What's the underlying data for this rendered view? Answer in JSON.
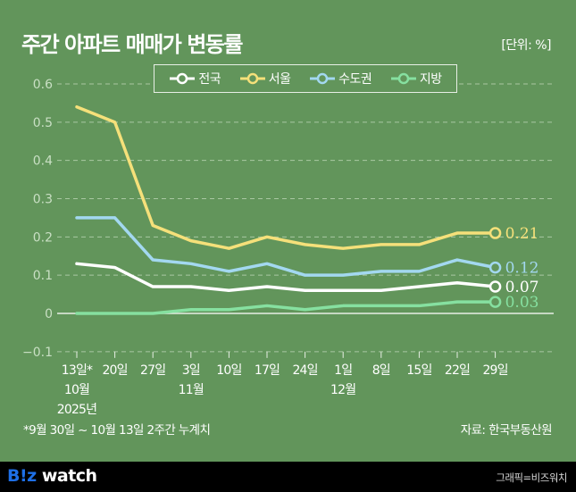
{
  "header": {
    "title": "주간 아파트 매매가 변동률",
    "unit": "[단위: %]"
  },
  "legend": [
    {
      "label": "전국",
      "color": "#ffffff"
    },
    {
      "label": "서울",
      "color": "#f5e07a"
    },
    {
      "label": "수도권",
      "color": "#a3d8f0"
    },
    {
      "label": "지방",
      "color": "#86e0a0"
    }
  ],
  "footnote": "*9월 30일 ~ 10월 13일 2주간 누계치",
  "source": "자료: 한국부동산원",
  "footer": {
    "logo_b": "B!z",
    "logo_rest": " watch",
    "credit": "그래픽=비즈워치"
  },
  "chart_data": {
    "type": "line",
    "title": "주간 아파트 매매가 변동률",
    "ylabel": "%",
    "xlabel": "",
    "ylim": [
      -0.1,
      0.6
    ],
    "yticks": [
      "0.6",
      "0.5",
      "0.4",
      "0.3",
      "0.2",
      "0.1",
      "0",
      "−0.1"
    ],
    "ytick_values": [
      0.6,
      0.5,
      0.4,
      0.3,
      0.2,
      0.1,
      0,
      -0.1
    ],
    "grid": true,
    "legend_position": "top",
    "categories": [
      "13일*",
      "20일",
      "27일",
      "3일",
      "10일",
      "17일",
      "24일",
      "1일",
      "8일",
      "15일",
      "22일",
      "29일"
    ],
    "month_labels": [
      {
        "index": 0,
        "label": "10월"
      },
      {
        "index": 3,
        "label": "11월"
      },
      {
        "index": 7,
        "label": "12월"
      }
    ],
    "year_label": {
      "index": 0,
      "label": "2025년"
    },
    "series": [
      {
        "name": "전국",
        "color": "#ffffff",
        "values": [
          0.13,
          0.12,
          0.07,
          0.07,
          0.06,
          0.07,
          0.06,
          0.06,
          0.06,
          0.07,
          0.08,
          0.07
        ],
        "end_label": "0.07"
      },
      {
        "name": "서울",
        "color": "#f5e07a",
        "values": [
          0.54,
          0.5,
          0.23,
          0.19,
          0.17,
          0.2,
          0.18,
          0.17,
          0.18,
          0.18,
          0.21,
          0.21
        ],
        "end_label": "0.21"
      },
      {
        "name": "수도권",
        "color": "#a3d8f0",
        "values": [
          0.25,
          0.25,
          0.14,
          0.13,
          0.11,
          0.13,
          0.1,
          0.1,
          0.11,
          0.11,
          0.14,
          0.12
        ],
        "end_label": "0.12"
      },
      {
        "name": "지방",
        "color": "#86e0a0",
        "values": [
          0.0,
          0.0,
          0.0,
          0.01,
          0.01,
          0.02,
          0.01,
          0.02,
          0.02,
          0.02,
          0.03,
          0.03
        ],
        "end_label": "0.03"
      }
    ]
  }
}
